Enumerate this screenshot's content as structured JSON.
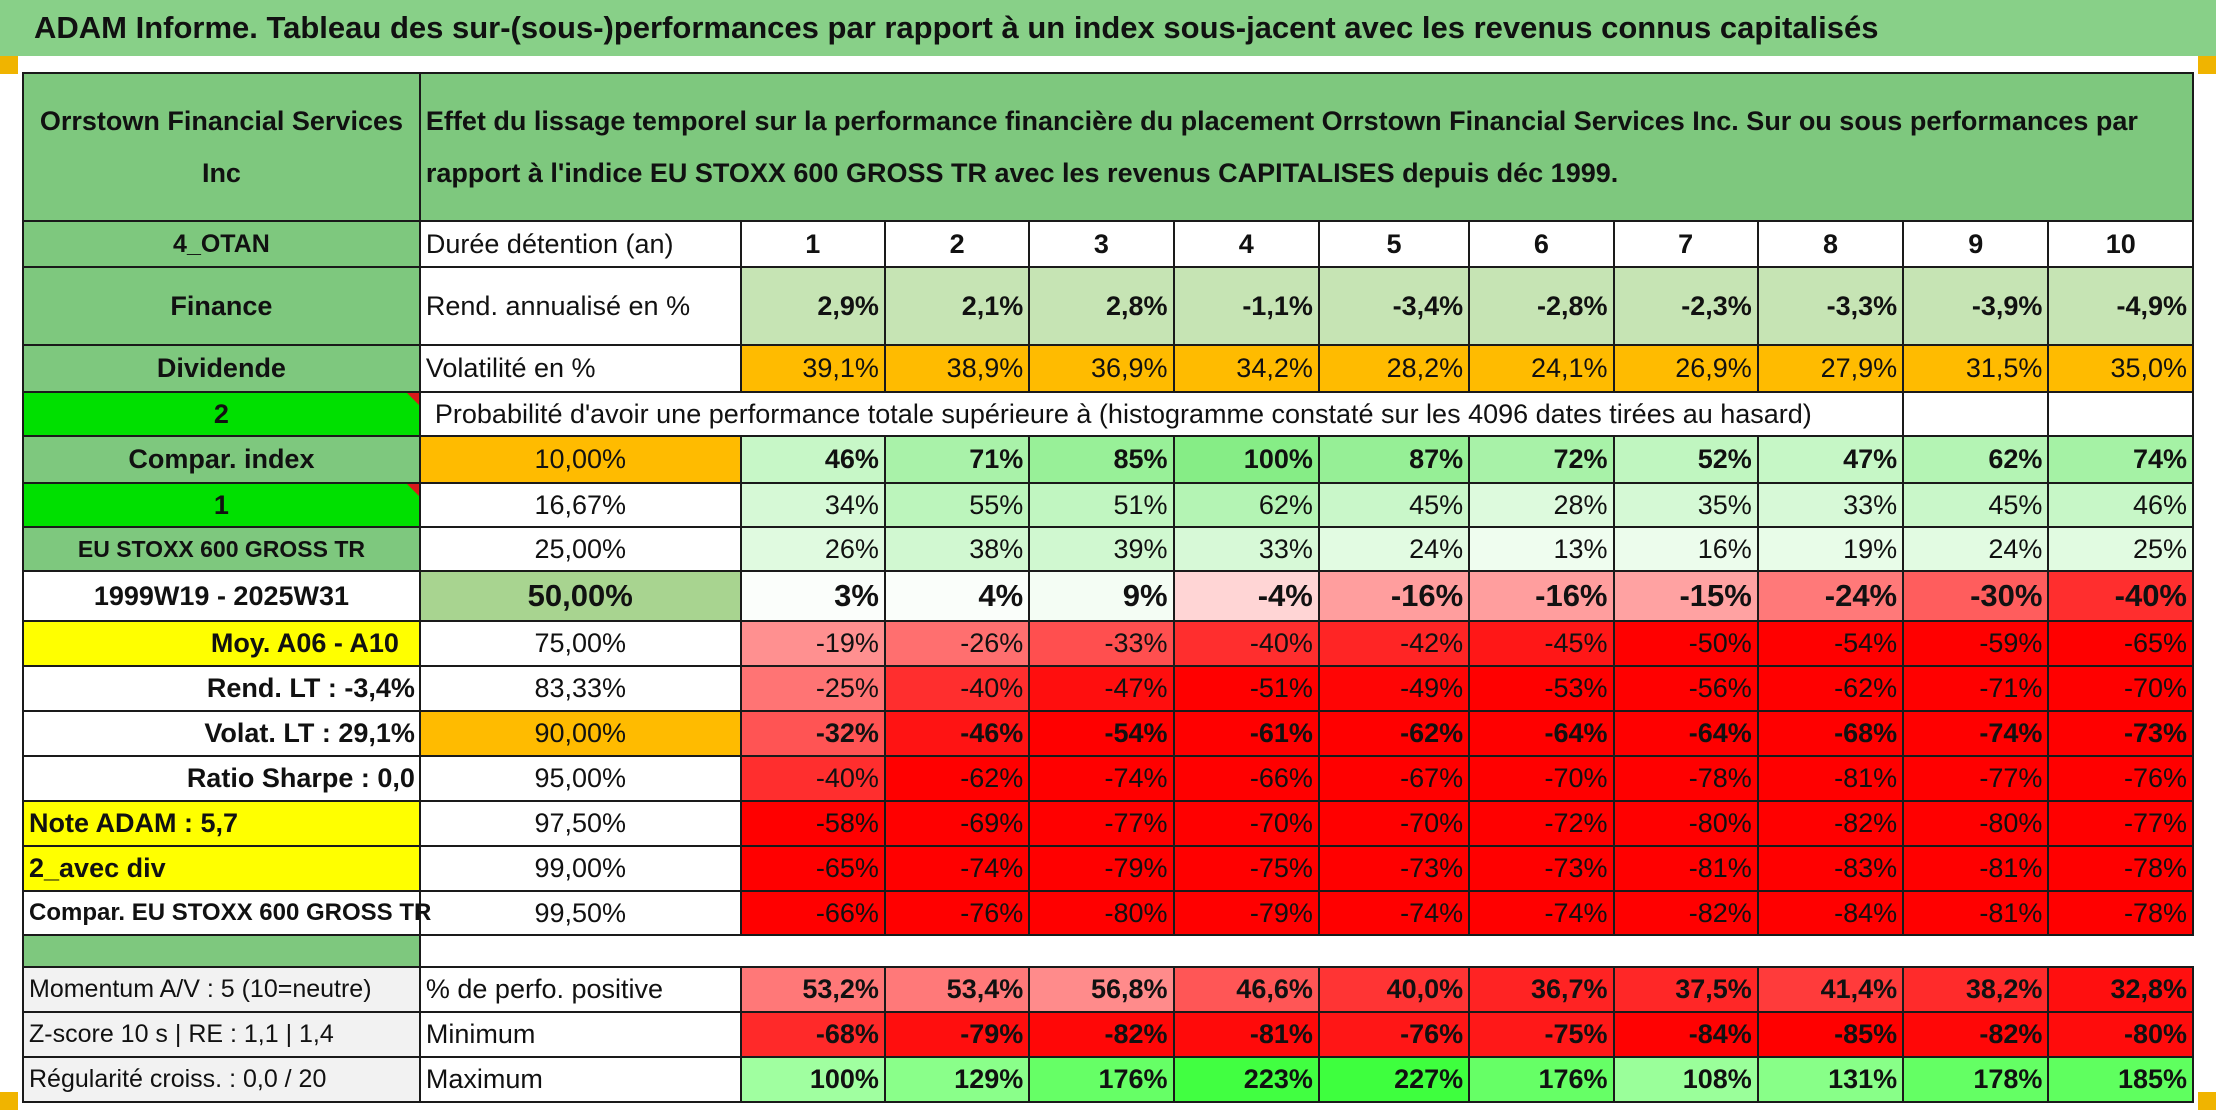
{
  "banner_title": "ADAM Informe. Tableau des sur-(sous-)performances par rapport à un index sous-jacent avec les revenus connus capitalisés",
  "company": "Orrstown Financial Services Inc",
  "heading": "Effet du lissage temporel sur la performance financière du placement Orrstown Financial Services Inc. Sur ou sous performances par rapport à l'indice EU STOXX 600 GROSS TR avec les revenus CAPITALISES depuis déc 1999.",
  "colors": {
    "green": "#7ec87e",
    "bright_green": "#00e000",
    "yellow": "#ffff00",
    "orange": "#ffbb00",
    "red": "#ff0000"
  },
  "side": {
    "code": "4_OTAN",
    "sector": "Finance",
    "dividend": "Dividende",
    "num2": "2",
    "compar_index": "Compar. index",
    "num1": "1",
    "index_name": "EU STOXX 600 GROSS TR",
    "period": "1999W19 - 2025W31",
    "moy": "Moy. A06 - A10",
    "rend_lt": "Rend. LT :    -3,4%",
    "volat_lt": "Volat. LT :    29,1%",
    "sharpe": "Ratio Sharpe :    0,0",
    "note": "Note ADAM : 5,7",
    "avec_div": "2_avec div",
    "compar_full": "Compar. EU STOXX 600 GROSS TR",
    "momentum": "Momentum A/V : 5 (10=neutre)",
    "zscore": "Z-score 10 s | RE : 1,1 | 1,4",
    "regularite": "Régularité croiss. : 0,0 / 20"
  },
  "labels": {
    "duree": "Durée détention (an)",
    "rend": "Rend. annualisé en %",
    "volat": "Volatilité en %",
    "proba": "Probabilité d'avoir une performance totale supérieure à (histogramme constaté sur les 4096 dates tirées au hasard)",
    "pct_pos": "% de perfo. positive",
    "min": "Minimum",
    "max": "Maximum"
  },
  "years": [
    "1",
    "2",
    "3",
    "4",
    "5",
    "6",
    "7",
    "8",
    "9",
    "10"
  ],
  "rend": [
    "2,9%",
    "2,1%",
    "2,8%",
    "-1,1%",
    "-3,4%",
    "-2,8%",
    "-2,3%",
    "-3,3%",
    "-3,9%",
    "-4,9%"
  ],
  "volat": [
    "39,1%",
    "38,9%",
    "36,9%",
    "34,2%",
    "28,2%",
    "24,1%",
    "26,9%",
    "27,9%",
    "31,5%",
    "35,0%"
  ],
  "prob_rows": [
    {
      "p": "10,00%",
      "v": [
        "46%",
        "71%",
        "85%",
        "100%",
        "87%",
        "72%",
        "52%",
        "47%",
        "62%",
        "74%"
      ]
    },
    {
      "p": "16,67%",
      "v": [
        "34%",
        "55%",
        "51%",
        "62%",
        "45%",
        "28%",
        "35%",
        "33%",
        "45%",
        "46%"
      ]
    },
    {
      "p": "25,00%",
      "v": [
        "26%",
        "38%",
        "39%",
        "33%",
        "24%",
        "13%",
        "16%",
        "19%",
        "24%",
        "25%"
      ]
    },
    {
      "p": "50,00%",
      "v": [
        "3%",
        "4%",
        "9%",
        "-4%",
        "-16%",
        "-16%",
        "-15%",
        "-24%",
        "-30%",
        "-40%"
      ]
    },
    {
      "p": "75,00%",
      "v": [
        "-19%",
        "-26%",
        "-33%",
        "-40%",
        "-42%",
        "-45%",
        "-50%",
        "-54%",
        "-59%",
        "-65%"
      ]
    },
    {
      "p": "83,33%",
      "v": [
        "-25%",
        "-40%",
        "-47%",
        "-51%",
        "-49%",
        "-53%",
        "-56%",
        "-62%",
        "-71%",
        "-70%"
      ]
    },
    {
      "p": "90,00%",
      "v": [
        "-32%",
        "-46%",
        "-54%",
        "-61%",
        "-62%",
        "-64%",
        "-64%",
        "-68%",
        "-74%",
        "-73%"
      ]
    },
    {
      "p": "95,00%",
      "v": [
        "-40%",
        "-62%",
        "-74%",
        "-66%",
        "-67%",
        "-70%",
        "-78%",
        "-81%",
        "-77%",
        "-76%"
      ]
    },
    {
      "p": "97,50%",
      "v": [
        "-58%",
        "-69%",
        "-77%",
        "-70%",
        "-70%",
        "-72%",
        "-80%",
        "-82%",
        "-80%",
        "-77%"
      ]
    },
    {
      "p": "99,00%",
      "v": [
        "-65%",
        "-74%",
        "-79%",
        "-75%",
        "-73%",
        "-73%",
        "-81%",
        "-83%",
        "-81%",
        "-78%"
      ]
    },
    {
      "p": "99,50%",
      "v": [
        "-66%",
        "-76%",
        "-80%",
        "-79%",
        "-74%",
        "-74%",
        "-82%",
        "-84%",
        "-81%",
        "-78%"
      ]
    }
  ],
  "pct_pos": [
    "53,2%",
    "53,4%",
    "56,8%",
    "46,6%",
    "40,0%",
    "36,7%",
    "37,5%",
    "41,4%",
    "38,2%",
    "32,8%"
  ],
  "min": [
    "-68%",
    "-79%",
    "-82%",
    "-81%",
    "-76%",
    "-75%",
    "-84%",
    "-85%",
    "-82%",
    "-80%"
  ],
  "max": [
    "100%",
    "129%",
    "176%",
    "223%",
    "227%",
    "176%",
    "108%",
    "131%",
    "178%",
    "185%"
  ]
}
